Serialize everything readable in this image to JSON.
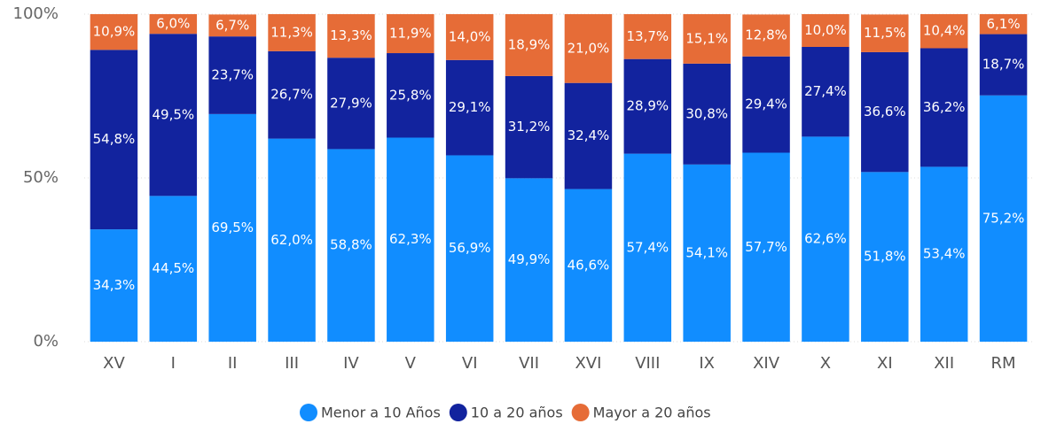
{
  "chart_data": {
    "type": "stacked_bar",
    "categories": [
      "XV",
      "I",
      "II",
      "III",
      "IV",
      "V",
      "VI",
      "VII",
      "XVI",
      "VIII",
      "IX",
      "XIV",
      "X",
      "XI",
      "XII",
      "RM"
    ],
    "series": [
      {
        "name": "Menor a 10 Años",
        "color": "#118DFF",
        "values": [
          34.3,
          44.5,
          69.5,
          62.0,
          58.8,
          62.3,
          56.9,
          49.9,
          46.6,
          57.4,
          54.1,
          57.7,
          62.6,
          51.8,
          53.4,
          75.2
        ],
        "value_labels": [
          "34,3%",
          "44,5%",
          "69,5%",
          "62,0%",
          "58,8%",
          "62,3%",
          "56,9%",
          "49,9%",
          "46,6%",
          "57,4%",
          "54,1%",
          "57,7%",
          "62,6%",
          "51,8%",
          "53,4%",
          "75,2%"
        ]
      },
      {
        "name": "10 a 20 años",
        "color": "#12239E",
        "values": [
          54.8,
          49.5,
          23.7,
          26.7,
          27.9,
          25.8,
          29.1,
          31.2,
          32.4,
          28.9,
          30.8,
          29.4,
          27.4,
          36.6,
          36.2,
          18.7
        ],
        "value_labels": [
          "54,8%",
          "49,5%",
          "23,7%",
          "26,7%",
          "27,9%",
          "25,8%",
          "29,1%",
          "31,2%",
          "32,4%",
          "28,9%",
          "30,8%",
          "29,4%",
          "27,4%",
          "36,6%",
          "36,2%",
          "18,7%"
        ]
      },
      {
        "name": "Mayor a 20 años",
        "color": "#E66C37",
        "values": [
          10.9,
          6.0,
          6.7,
          11.3,
          13.3,
          11.9,
          14.0,
          18.9,
          21.0,
          13.7,
          15.1,
          12.8,
          10.0,
          11.5,
          10.4,
          6.1
        ],
        "value_labels": [
          "10,9%",
          "6,0%",
          "6,7%",
          "11,3%",
          "13,3%",
          "11,9%",
          "14,0%",
          "18,9%",
          "21,0%",
          "13,7%",
          "15,1%",
          "12,8%",
          "10,0%",
          "11,5%",
          "10,4%",
          "6,1%"
        ]
      }
    ],
    "ylim": [
      0,
      100
    ],
    "yticks": [
      {
        "value": 0,
        "label": "0%"
      },
      {
        "value": 50,
        "label": "50%"
      },
      {
        "value": 100,
        "label": "100%"
      }
    ],
    "grid": true,
    "legend": "bottom"
  }
}
